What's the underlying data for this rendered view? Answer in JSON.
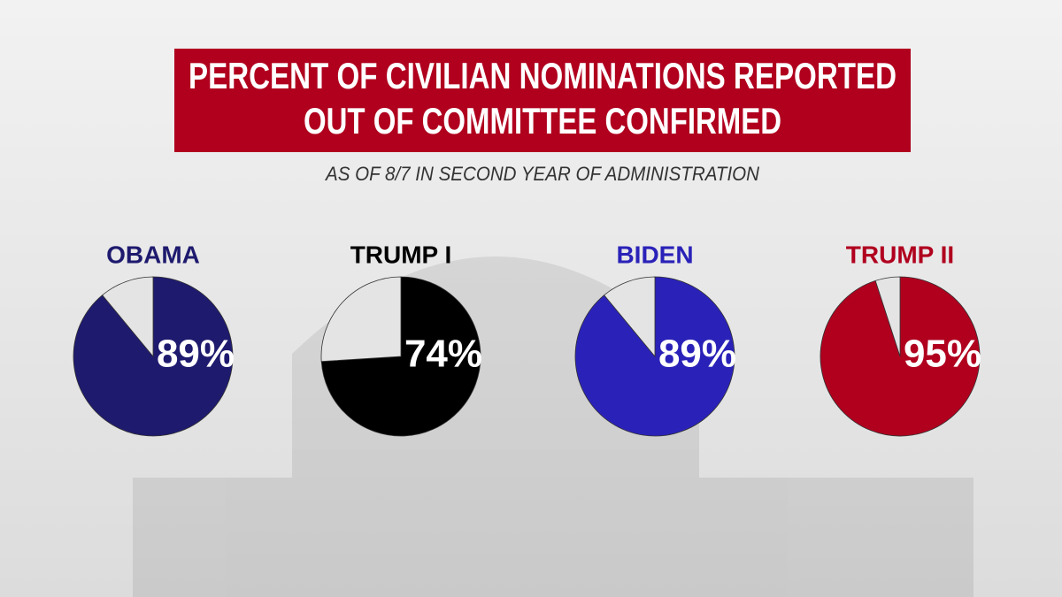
{
  "header": {
    "title": [
      "PERCENT OF CIVILIAN NOMINATIONS REPORTED",
      "OUT OF COMMITTEE CONFIRMED"
    ],
    "subtitle": "AS OF 8/7 IN SECOND YEAR OF ADMINISTRATION"
  },
  "chart_data": [
    {
      "type": "pie",
      "title": "OBAMA",
      "values": [
        89,
        11
      ],
      "value_labels": [
        "89%",
        null
      ],
      "colors": [
        "#1e1a6e",
        "#e4e4e4"
      ]
    },
    {
      "type": "pie",
      "title": "TRUMP I",
      "values": [
        74,
        26
      ],
      "value_labels": [
        "74%",
        null
      ],
      "colors": [
        "#000000",
        "#e4e4e4"
      ]
    },
    {
      "type": "pie",
      "title": "BIDEN",
      "values": [
        89,
        11
      ],
      "value_labels": [
        "89%",
        null
      ],
      "colors": [
        "#2a22b8",
        "#e4e4e4"
      ]
    },
    {
      "type": "pie",
      "title": "TRUMP II",
      "values": [
        95,
        5
      ],
      "value_labels": [
        "95%",
        null
      ],
      "colors": [
        "#b0001e",
        "#e4e4e4"
      ]
    }
  ]
}
